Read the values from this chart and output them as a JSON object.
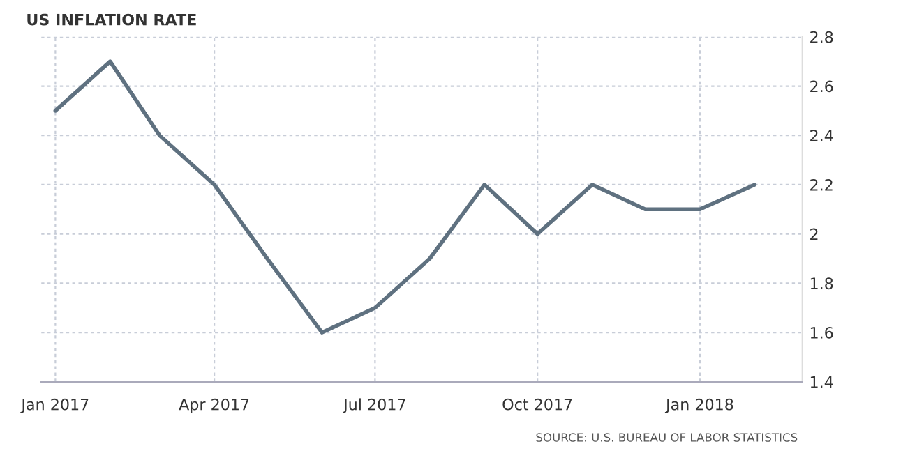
{
  "chart_data": {
    "type": "line",
    "title": "US INFLATION RATE",
    "x": [
      "2017-01",
      "2017-02",
      "2017-03",
      "2017-04",
      "2017-05",
      "2017-06",
      "2017-07",
      "2017-08",
      "2017-09",
      "2017-10",
      "2017-11",
      "2017-12",
      "2018-01",
      "2018-02"
    ],
    "series": [
      {
        "color": "#5f7180",
        "values": [
          2.5,
          2.7,
          2.4,
          2.2,
          1.9,
          1.6,
          1.7,
          1.9,
          2.2,
          2.0,
          2.2,
          2.1,
          2.1,
          2.2
        ]
      }
    ],
    "xlim": [
      "2016-12-24",
      "2018-02-28"
    ],
    "xticks": [
      {
        "value": "2017-01-01",
        "label": "Jan 2017"
      },
      {
        "value": "2017-04-01",
        "label": "Apr 2017"
      },
      {
        "value": "2017-07-01",
        "label": "Jul 2017"
      },
      {
        "value": "2017-10-01",
        "label": "Oct 2017"
      },
      {
        "value": "2018-01-01",
        "label": "Jan 2018"
      }
    ],
    "ylim": [
      1.4,
      2.8
    ],
    "yticks": [
      1.4,
      1.6,
      1.8,
      2,
      2.2,
      2.4,
      2.6,
      2.8
    ],
    "grid": true,
    "line_style": "solid",
    "marker": "none",
    "annotations": [
      "SOURCE: U.S. BUREAU OF LABOR STATISTICS"
    ]
  }
}
